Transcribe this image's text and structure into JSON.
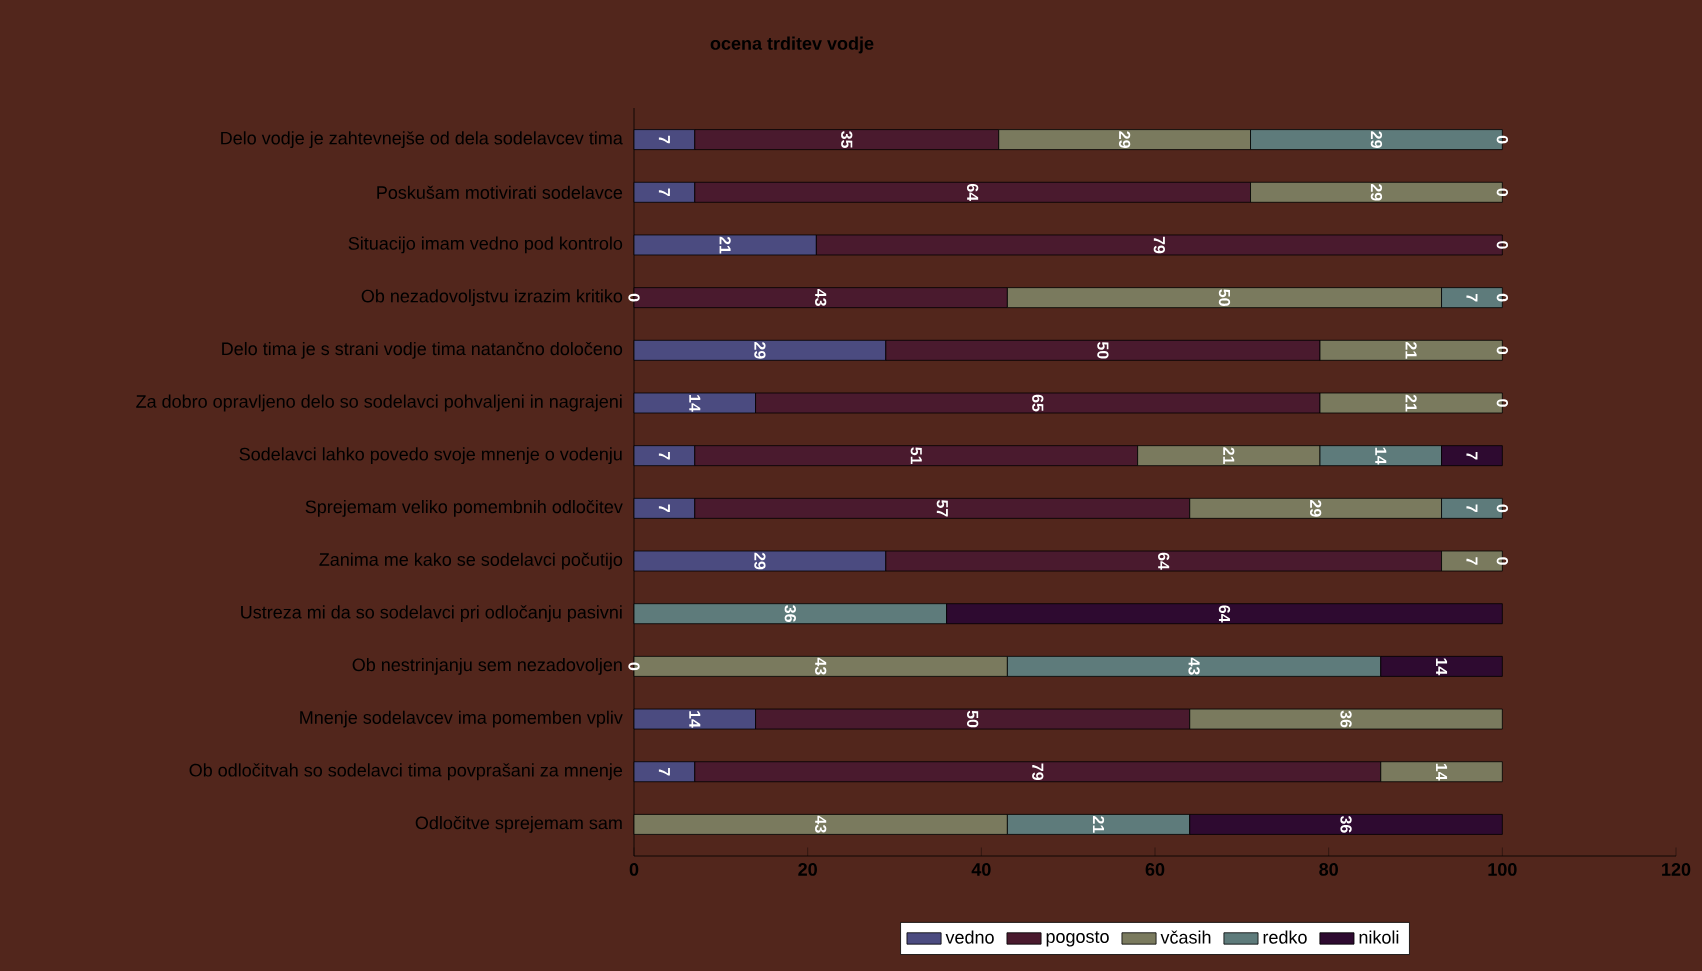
{
  "chart_data": {
    "type": "bar",
    "orientation": "horizontal",
    "stacked": true,
    "title": "ocena trditev vodje",
    "categories": [
      "Delo vodje je zahtevnejše od dela sodelavcev tima",
      "Poskušam motivirati sodelavce",
      "Situacijo imam vedno pod kontrolo",
      "Ob nezadovoljstvu izrazim kritiko",
      "Delo tima je s strani vodje tima natančno določeno",
      "Za dobro opravljeno delo so sodelavci pohvaljeni in nagrajeni",
      "Sodelavci lahko povedo svoje mnenje o vodenju",
      "Sprejemam veliko pomembnih odločitev",
      "Zanima me kako se sodelavci počutijo",
      "Ustreza mi da so sodelavci pri odločanju pasivni",
      "Ob nestrinjanju sem nezadovoljen",
      "Mnenje sodelavcev ima pomemben vpliv",
      "Ob odločitvah so sodelavci tima povprašani za mnenje",
      "Odločitve sprejemam sam"
    ],
    "series": [
      {
        "name": "vedno",
        "color": "#4b4b80",
        "values": [
          7,
          7,
          21,
          null,
          29,
          14,
          7,
          7,
          29,
          null,
          null,
          14,
          7,
          null
        ]
      },
      {
        "name": "pogosto",
        "color": "#4a1a2e",
        "values": [
          35,
          64,
          79,
          43,
          50,
          65,
          51,
          57,
          64,
          null,
          null,
          50,
          79,
          null
        ]
      },
      {
        "name": "včasih",
        "color": "#7a7a5e",
        "values": [
          29,
          29,
          0,
          50,
          21,
          21,
          21,
          29,
          7,
          null,
          43,
          36,
          14,
          43
        ]
      },
      {
        "name": "redko",
        "color": "#5e7b7b",
        "values": [
          29,
          0,
          null,
          7,
          0,
          0,
          14,
          7,
          0,
          36,
          43,
          null,
          null,
          21
        ]
      },
      {
        "name": "nikoli",
        "color": "#2e0a30",
        "values": [
          0,
          null,
          null,
          0,
          null,
          null,
          7,
          0,
          null,
          64,
          14,
          null,
          null,
          36
        ]
      }
    ],
    "xlim": [
      0,
      120
    ],
    "xticks": [
      0,
      20,
      40,
      60,
      80,
      100,
      120
    ],
    "data_labels": true,
    "annotations": [
      {
        "text": "0",
        "x": 0,
        "y": "Ob nezadovoljstvu izrazim kritiko"
      },
      {
        "text": "0",
        "x": 0,
        "y": "Ob nestrinjanju sem nezadovoljen"
      }
    ],
    "legend": "bottom",
    "grid": false
  }
}
